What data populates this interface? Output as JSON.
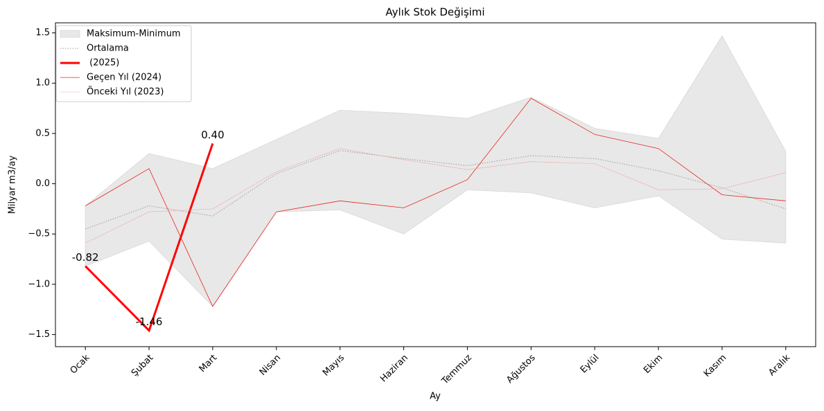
{
  "chart_data": {
    "type": "line",
    "title": "Aylık Stok Değişimi",
    "x_label": "Ay",
    "y_label": "Milyar m3/ay",
    "categories": [
      "Ocak",
      "Şubat",
      "Mart",
      "Nisan",
      "Mayıs",
      "Haziran",
      "Temmuz",
      "Ağustos",
      "Eylül",
      "Ekim",
      "Kasım",
      "Aralık"
    ],
    "band": {
      "name": "Maksimum-Minimum",
      "color": "#e8e8e8",
      "upper": [
        -0.22,
        0.3,
        0.15,
        0.44,
        0.73,
        0.7,
        0.65,
        0.86,
        0.55,
        0.45,
        1.47,
        0.32
      ],
      "lower": [
        -0.82,
        -0.57,
        -1.22,
        -0.28,
        -0.26,
        -0.5,
        -0.06,
        -0.09,
        -0.24,
        -0.12,
        -0.55,
        -0.59
      ]
    },
    "series": [
      {
        "name": "Ortalama",
        "color": "#999999",
        "values": [
          -0.45,
          -0.22,
          -0.32,
          0.1,
          0.33,
          0.25,
          0.18,
          0.28,
          0.25,
          0.13,
          -0.04,
          -0.25
        ]
      },
      {
        "name": " (2025)",
        "color": "#ff0000",
        "values": [
          -0.82,
          -1.46,
          0.4,
          null,
          null,
          null,
          null,
          null,
          null,
          null,
          null,
          null
        ],
        "value_labels": [
          "-0.82",
          "-1.46",
          "0.40",
          null,
          null,
          null,
          null,
          null,
          null,
          null,
          null,
          null
        ]
      },
      {
        "name": "Geçen Yıl (2024)",
        "color": "#e8221a",
        "values": [
          -0.22,
          0.15,
          -1.22,
          -0.28,
          -0.17,
          -0.24,
          0.04,
          0.85,
          0.49,
          0.35,
          -0.11,
          -0.17
        ]
      },
      {
        "name": "Önceki Yıl (2023)",
        "color": "#f2a8a8",
        "values": [
          -0.59,
          -0.28,
          -0.25,
          0.12,
          0.35,
          0.24,
          0.14,
          0.22,
          0.2,
          -0.06,
          -0.05,
          0.11
        ]
      }
    ],
    "ylim": [
      -1.62,
      1.6
    ],
    "yticks": [
      {
        "value": -1.5,
        "label": "−1.5"
      },
      {
        "value": -1.0,
        "label": "−1.0"
      },
      {
        "value": -0.5,
        "label": "−0.5"
      },
      {
        "value": 0.0,
        "label": "0.0"
      },
      {
        "value": 0.5,
        "label": "0.5"
      },
      {
        "value": 1.0,
        "label": "1.0"
      },
      {
        "value": 1.5,
        "label": "1.5"
      }
    ],
    "legend": "upper left"
  }
}
